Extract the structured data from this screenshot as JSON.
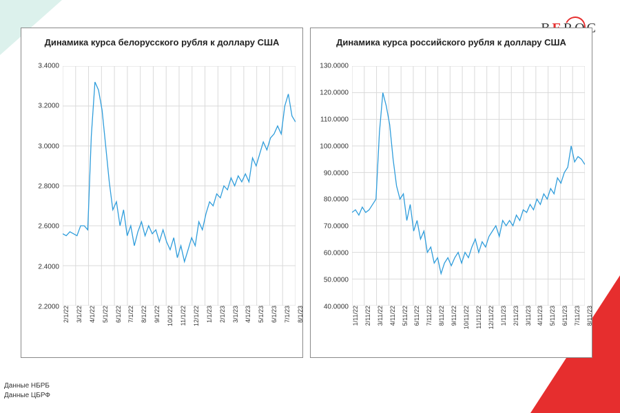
{
  "logo": {
    "text": "BEROC"
  },
  "sources": [
    "Данные НБРБ",
    "Данные ЦБРФ"
  ],
  "charts": [
    {
      "title": "Динамика курса белорусского рубля к доллару США",
      "type": "line",
      "line_color": "#2d9cdb",
      "line_width": 1.3,
      "grid_color": "#d9d9d9",
      "background_color": "#ffffff",
      "title_fontsize": 13,
      "label_fontsize": 10,
      "ylim": [
        2.2,
        3.4
      ],
      "ytick_step": 0.2,
      "y_format": "4dec",
      "x_labels": [
        "2/1/22",
        "3/1/22",
        "4/1/22",
        "5/1/22",
        "6/1/22",
        "7/1/22",
        "8/1/22",
        "9/1/22",
        "10/1/22",
        "11/1/22",
        "12/1/22",
        "1/1/23",
        "2/1/23",
        "3/1/23",
        "4/1/23",
        "5/1/23",
        "6/1/23",
        "7/1/23",
        "8/1/23"
      ],
      "values": [
        2.56,
        2.55,
        2.57,
        2.56,
        2.55,
        2.6,
        2.6,
        2.58,
        3.05,
        3.32,
        3.28,
        3.18,
        3.0,
        2.82,
        2.68,
        2.72,
        2.6,
        2.68,
        2.55,
        2.6,
        2.5,
        2.57,
        2.62,
        2.55,
        2.6,
        2.56,
        2.58,
        2.52,
        2.58,
        2.52,
        2.48,
        2.54,
        2.44,
        2.5,
        2.42,
        2.48,
        2.54,
        2.5,
        2.62,
        2.58,
        2.66,
        2.72,
        2.7,
        2.76,
        2.74,
        2.8,
        2.78,
        2.84,
        2.8,
        2.85,
        2.82,
        2.86,
        2.82,
        2.94,
        2.9,
        2.96,
        3.02,
        2.98,
        3.04,
        3.06,
        3.1,
        3.06,
        3.2,
        3.26,
        3.15,
        3.12
      ]
    },
    {
      "title": "Динамика курса российского рубля к доллару США",
      "type": "line",
      "line_color": "#2d9cdb",
      "line_width": 1.3,
      "grid_color": "#d9d9d9",
      "background_color": "#ffffff",
      "title_fontsize": 13,
      "label_fontsize": 10,
      "ylim": [
        40,
        130
      ],
      "ytick_step": 10,
      "y_format": "4dec",
      "x_labels": [
        "1/11/22",
        "2/11/22",
        "3/11/22",
        "4/11/22",
        "5/11/22",
        "6/11/22",
        "7/11/22",
        "8/11/22",
        "9/11/22",
        "10/11/22",
        "11/11/22",
        "12/11/22",
        "1/11/23",
        "2/11/23",
        "3/11/23",
        "4/11/23",
        "5/11/23",
        "6/11/23",
        "7/11/23",
        "8/11/23"
      ],
      "values": [
        75,
        76,
        74,
        77,
        75,
        76,
        78,
        80,
        105,
        120,
        115,
        108,
        95,
        85,
        80,
        82,
        72,
        78,
        68,
        72,
        65,
        68,
        60,
        62,
        56,
        58,
        52,
        56,
        58,
        55,
        58,
        60,
        56,
        60,
        58,
        62,
        65,
        60,
        64,
        62,
        66,
        68,
        70,
        66,
        72,
        70,
        72,
        70,
        74,
        72,
        76,
        75,
        78,
        76,
        80,
        78,
        82,
        80,
        84,
        82,
        88,
        86,
        90,
        92,
        100,
        94,
        96,
        95,
        93
      ]
    }
  ]
}
